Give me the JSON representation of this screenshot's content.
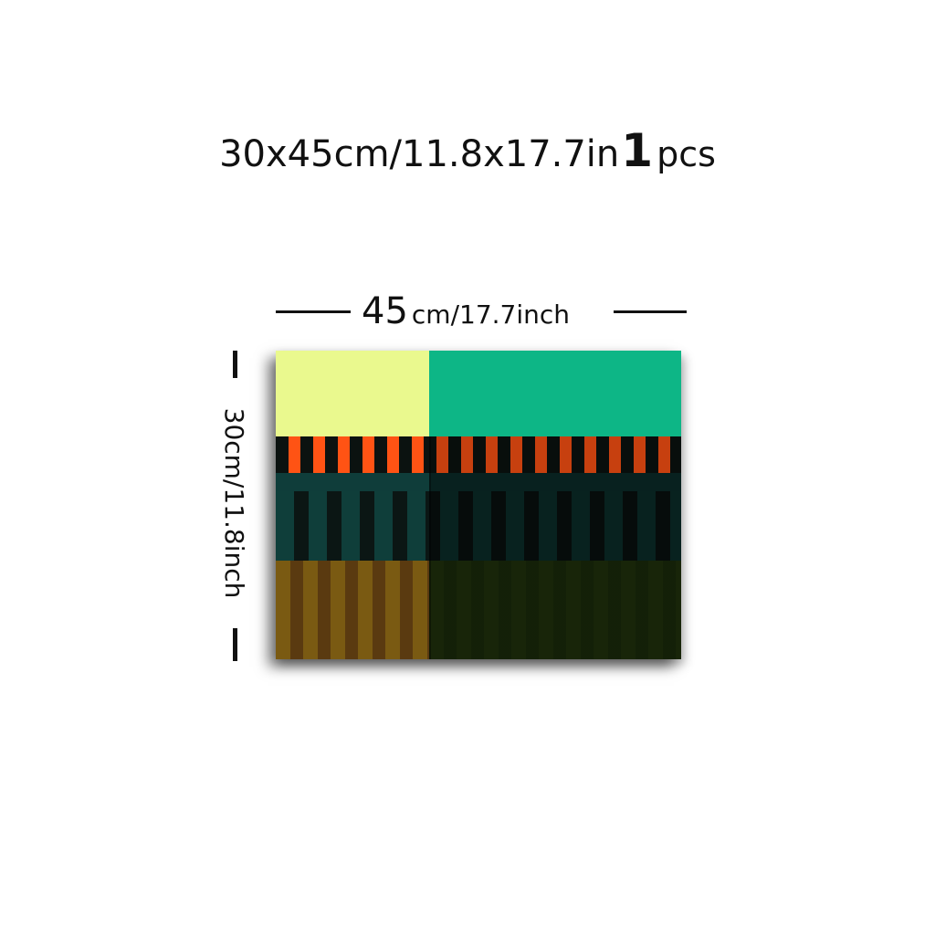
{
  "headline": {
    "size_text": "30x45cm/11.8x17.7in",
    "quantity": "1",
    "unit": "pcs"
  },
  "width_dimension": {
    "value": "45",
    "unit_text": "cm/17.7inch"
  },
  "height_dimension": {
    "label": "30cm/11.8inch"
  },
  "artwork": {
    "colors": {
      "yellow": "#eaf98e",
      "green": "#0db686",
      "orange": "#ff5314",
      "teal": "#0f3e3a",
      "olive": "#7a5a12",
      "dark": "#0b1210"
    }
  }
}
